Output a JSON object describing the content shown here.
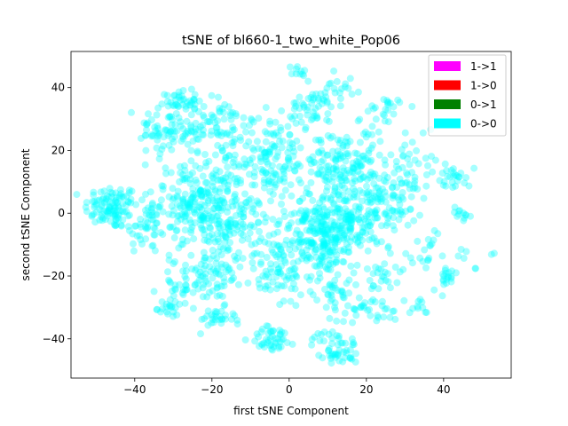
{
  "chart_data": {
    "type": "scatter",
    "title": "tSNE of bl660-1_two_white_Pop06",
    "xlabel": "first tSNE Component",
    "ylabel": "second tSNE Component",
    "xlim": [
      -56.5,
      57.5
    ],
    "ylim": [
      -52.5,
      51.5
    ],
    "xticks": [
      -40,
      -20,
      0,
      20,
      40
    ],
    "yticks": [
      -40,
      -20,
      0,
      20,
      40
    ],
    "grid": false,
    "legend_position": "top-right",
    "legend": [
      {
        "label": "1->1",
        "color": "#ff00ff"
      },
      {
        "label": "1->0",
        "color": "#ff0000"
      },
      {
        "label": "0->1",
        "color": "#008000"
      },
      {
        "label": "0->0",
        "color": "#00ffff"
      }
    ],
    "series": [
      {
        "name": "0->0",
        "color": "#00ffff",
        "alpha": 0.35,
        "note": "approx. 1800 points forming clusters; cluster centers/spreads estimated from the figure",
        "clusters": [
          {
            "cx": -46,
            "cy": 2,
            "sx": 3.5,
            "sy": 3.5,
            "n": 110
          },
          {
            "cx": -37,
            "cy": -5,
            "sx": 3,
            "sy": 4,
            "n": 40
          },
          {
            "cx": -31,
            "cy": 27,
            "sx": 4,
            "sy": 5,
            "n": 90
          },
          {
            "cx": -28,
            "cy": 36,
            "sx": 2,
            "sy": 1.5,
            "n": 25
          },
          {
            "cx": -23,
            "cy": 4,
            "sx": 6,
            "sy": 6,
            "n": 220
          },
          {
            "cx": -18,
            "cy": 27,
            "sx": 4,
            "sy": 5,
            "n": 70
          },
          {
            "cx": -15,
            "cy": -4,
            "sx": 5,
            "sy": 5,
            "n": 120
          },
          {
            "cx": -20,
            "cy": -20,
            "sx": 4,
            "sy": 4,
            "n": 60
          },
          {
            "cx": -28,
            "cy": -23,
            "sx": 3,
            "sy": 4,
            "n": 40
          },
          {
            "cx": -19,
            "cy": -34,
            "sx": 2.5,
            "sy": 2,
            "n": 30
          },
          {
            "cx": -31,
            "cy": -30,
            "sx": 1.5,
            "sy": 1.5,
            "n": 15
          },
          {
            "cx": -5,
            "cy": 18,
            "sx": 6,
            "sy": 7,
            "n": 160
          },
          {
            "cx": -4,
            "cy": -20,
            "sx": 4,
            "sy": 5,
            "n": 60
          },
          {
            "cx": -4,
            "cy": -40,
            "sx": 3,
            "sy": 2,
            "n": 45
          },
          {
            "cx": 2,
            "cy": 45,
            "sx": 1.5,
            "sy": 1,
            "n": 10
          },
          {
            "cx": 6,
            "cy": 33,
            "sx": 3,
            "sy": 3,
            "n": 45
          },
          {
            "cx": 6,
            "cy": -10,
            "sx": 5,
            "sy": 5,
            "n": 120
          },
          {
            "cx": 12,
            "cy": -3,
            "sx": 6,
            "sy": 6,
            "n": 260
          },
          {
            "cx": 15,
            "cy": 15,
            "sx": 5,
            "sy": 6,
            "n": 150
          },
          {
            "cx": 12,
            "cy": 40,
            "sx": 2,
            "sy": 3,
            "n": 20
          },
          {
            "cx": 12,
            "cy": -25,
            "sx": 3,
            "sy": 4,
            "n": 45
          },
          {
            "cx": 12,
            "cy": -43,
            "sx": 3,
            "sy": 3,
            "n": 55
          },
          {
            "cx": 20,
            "cy": -30,
            "sx": 2,
            "sy": 1.5,
            "n": 15
          },
          {
            "cx": 25,
            "cy": 3,
            "sx": 4,
            "sy": 6,
            "n": 90
          },
          {
            "cx": 24,
            "cy": 33,
            "sx": 3,
            "sy": 3,
            "n": 25
          },
          {
            "cx": 26,
            "cy": -20,
            "sx": 3,
            "sy": 4,
            "n": 30
          },
          {
            "cx": 25,
            "cy": -32,
            "sx": 1.5,
            "sy": 1.5,
            "n": 10
          },
          {
            "cx": 32,
            "cy": 15,
            "sx": 3,
            "sy": 6,
            "n": 40
          },
          {
            "cx": 37,
            "cy": -10,
            "sx": 2,
            "sy": 3,
            "n": 15
          },
          {
            "cx": 34,
            "cy": -30,
            "sx": 1.5,
            "sy": 1.5,
            "n": 10
          },
          {
            "cx": 43,
            "cy": 12,
            "sx": 2,
            "sy": 2,
            "n": 25
          },
          {
            "cx": 44,
            "cy": 0,
            "sx": 1.5,
            "sy": 1.5,
            "n": 12
          },
          {
            "cx": 41,
            "cy": -21,
            "sx": 2,
            "sy": 2,
            "n": 20
          },
          {
            "cx": 45,
            "cy": -13,
            "sx": 1,
            "sy": 1,
            "n": 4
          },
          {
            "cx": 52,
            "cy": -13,
            "sx": 0.4,
            "sy": 0.4,
            "n": 2
          },
          {
            "cx": 48,
            "cy": -18,
            "sx": 0.4,
            "sy": 0.4,
            "n": 2
          }
        ]
      }
    ]
  }
}
